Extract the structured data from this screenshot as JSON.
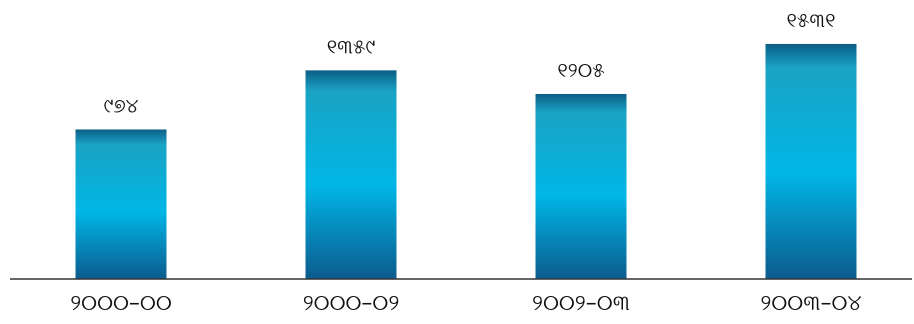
{
  "chart_data": {
    "type": "bar",
    "categories": [
      "୨୦୦୦–୦୦",
      "୨୦୦୦–୦୨",
      "୨୦୦୨–୦୩",
      "୨୦୦୩–୦୪"
    ],
    "values": [
      974,
      1359,
      1205,
      1531
    ],
    "value_labels": [
      "୯୭୪",
      "୧୩୫୯",
      "୧୨୦୫",
      "୧୫୩୧"
    ],
    "title": "",
    "xlabel": "",
    "ylabel": "",
    "ylim": [
      0,
      1700
    ],
    "grid": false,
    "legend": "none",
    "colors": {
      "bar_top": "#0b5e86",
      "bar_mid": "#00b6e6",
      "bar_bottom": "#0c5b8e",
      "axis": "#333333",
      "text": "#111111"
    }
  }
}
